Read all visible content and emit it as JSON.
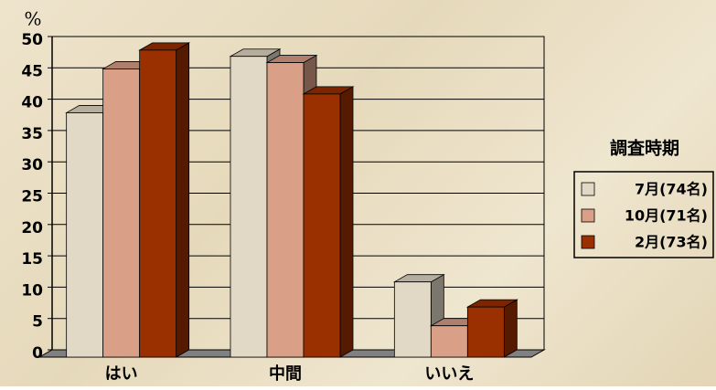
{
  "chart_data": {
    "type": "bar3d",
    "y_label": "%",
    "legend_title": "調査時期",
    "categories": [
      "はい",
      "中間",
      "いいえ"
    ],
    "series": [
      {
        "name": "7月(74名)",
        "color": "#e2d8c6",
        "values": [
          39,
          48,
          12
        ]
      },
      {
        "name": "10月(71名)",
        "color": "#d99f87",
        "values": [
          46,
          47,
          5
        ]
      },
      {
        "name": "2月(73名)",
        "color": "#9a3000",
        "values": [
          49,
          42,
          8
        ]
      }
    ],
    "ylim": [
      0,
      50
    ],
    "yticks": [
      0,
      5,
      10,
      15,
      20,
      25,
      30,
      35,
      40,
      45,
      50
    ],
    "grid": true
  }
}
